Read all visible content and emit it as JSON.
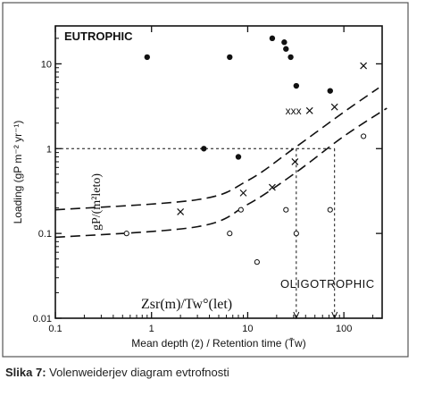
{
  "caption": {
    "label": "Slika 7:",
    "text": "Volenweiderjev diagram evtrofnosti"
  },
  "chart_data": {
    "type": "scatter",
    "title": "",
    "xlabel": "Mean depth (z̄) / Retention time (T̄w)",
    "ylabel": "Loading (gP m⁻² yr⁻¹)",
    "x_scale": "log",
    "y_scale": "log",
    "xlim": [
      0.1,
      250
    ],
    "ylim": [
      0.01,
      28
    ],
    "x_ticks": [
      {
        "value": 0.1,
        "label": "0.1"
      },
      {
        "value": 1,
        "label": "1"
      },
      {
        "value": 10,
        "label": "10"
      },
      {
        "value": 100,
        "label": "100"
      }
    ],
    "y_ticks": [
      {
        "value": 0.01,
        "label": "0.01"
      },
      {
        "value": 0.1,
        "label": "0.1"
      },
      {
        "value": 1,
        "label": "1"
      },
      {
        "value": 10,
        "label": "10"
      }
    ],
    "region_labels": {
      "top": "EUTROPHIC",
      "bottom": "OLIGOTROPHIC"
    },
    "overlay_labels": {
      "y_annotation": "gP/(m²leto)",
      "x_annotation": "Zsr(m)/Tw°(let)"
    },
    "series": [
      {
        "marker": "filled-circle",
        "points": [
          [
            0.9,
            12
          ],
          [
            6.5,
            12
          ],
          [
            3.5,
            1
          ],
          [
            8,
            0.8
          ],
          [
            18,
            20
          ],
          [
            24,
            18
          ],
          [
            25,
            15
          ],
          [
            28,
            12
          ],
          [
            32,
            5.5
          ],
          [
            72,
            4.8
          ]
        ]
      },
      {
        "marker": "x",
        "points": [
          [
            2,
            0.18
          ],
          [
            9,
            0.3
          ],
          [
            18,
            0.35
          ],
          [
            31,
            0.7
          ],
          [
            44,
            2.8
          ],
          [
            80,
            3.1
          ],
          [
            160,
            9.5
          ]
        ]
      },
      {
        "marker": "open-circle",
        "points": [
          [
            0.55,
            0.1
          ],
          [
            6.5,
            0.1
          ],
          [
            8.5,
            0.19
          ],
          [
            12.5,
            0.046
          ],
          [
            25,
            0.19
          ],
          [
            32,
            0.1
          ],
          [
            72,
            0.19
          ],
          [
            160,
            1.4
          ]
        ]
      }
    ],
    "cluster_label": {
      "text": "xxx",
      "x": 28,
      "y": 2.8
    },
    "boundary_lines": [
      {
        "name": "",
        "style": "dashed",
        "points": [
          [
            0.1,
            0.19
          ],
          [
            3,
            0.25
          ],
          [
            10,
            0.42
          ],
          [
            30,
            1
          ],
          [
            100,
            2.7
          ],
          [
            230,
            5.2
          ]
        ]
      },
      {
        "name": "",
        "style": "dashed",
        "points": [
          [
            0.1,
            0.09
          ],
          [
            3,
            0.12
          ],
          [
            10,
            0.22
          ],
          [
            30,
            0.5
          ],
          [
            100,
            1.4
          ],
          [
            280,
            3.0
          ]
        ]
      }
    ],
    "reference_lines": [
      {
        "y_value": 1,
        "x_from": 0.1,
        "x_to": 80
      },
      {
        "x_value": 32,
        "y_from": 0.01,
        "y_to": 1
      },
      {
        "x_value": 80,
        "y_from": 0.01,
        "y_to": 1
      }
    ],
    "grid": false,
    "legend": "none"
  }
}
